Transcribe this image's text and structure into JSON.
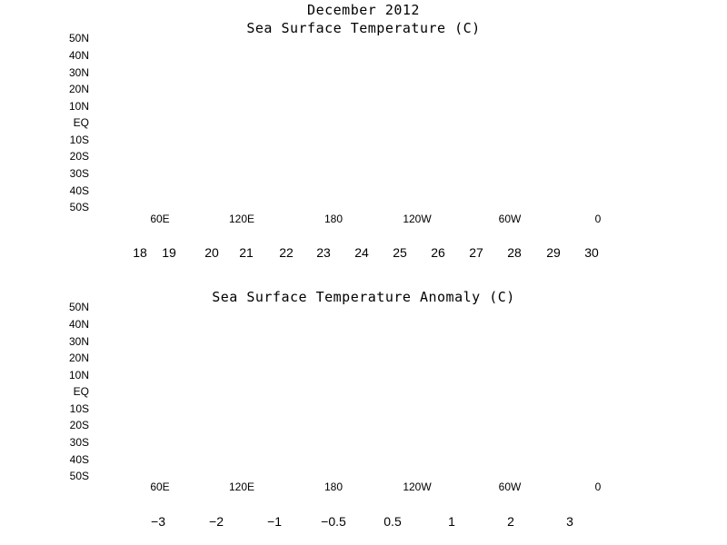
{
  "title_line1": "December 2012",
  "map1": {
    "title": "Sea Surface Temperature (C)",
    "lat_labels": [
      "50N",
      "40N",
      "30N",
      "20N",
      "10N",
      "EQ",
      "10S",
      "20S",
      "30S",
      "40S",
      "50S"
    ],
    "lon_labels": [
      "60E",
      "120E",
      "180",
      "120W",
      "60W",
      "0"
    ],
    "colorbar": {
      "labels": [
        "18",
        "19",
        "20",
        "21",
        "22",
        "23",
        "24",
        "25",
        "26",
        "27",
        "28",
        "29",
        "30"
      ],
      "colors": [
        "#1f5fc8",
        "#2a70db",
        "#3c84e8",
        "#4e96ee",
        "#68a9f2",
        "#86bdf6",
        "#a8d4fa",
        "#e8fafe",
        "#fff3a8",
        "#ffe081",
        "#ffc04a",
        "#ff8c1e",
        "#e8401a",
        "#b00000"
      ]
    }
  },
  "map2": {
    "title": "Sea Surface Temperature Anomaly (C)",
    "lat_labels": [
      "50N",
      "40N",
      "30N",
      "20N",
      "10N",
      "EQ",
      "10S",
      "20S",
      "30S",
      "40S",
      "50S"
    ],
    "lon_labels": [
      "60E",
      "120E",
      "180",
      "120W",
      "60W",
      "0"
    ],
    "colorbar": {
      "labels": [
        "−3",
        "−2",
        "−1",
        "−0.5",
        "0.5",
        "1",
        "2",
        "3"
      ],
      "colors": [
        "#8a6fd8",
        "#3f6fe0",
        "#5ea0f0",
        "#a8d0f8",
        "#ffffff",
        "#ffc04a",
        "#ff9a10",
        "#f05a18",
        "#e01a10"
      ]
    }
  }
}
